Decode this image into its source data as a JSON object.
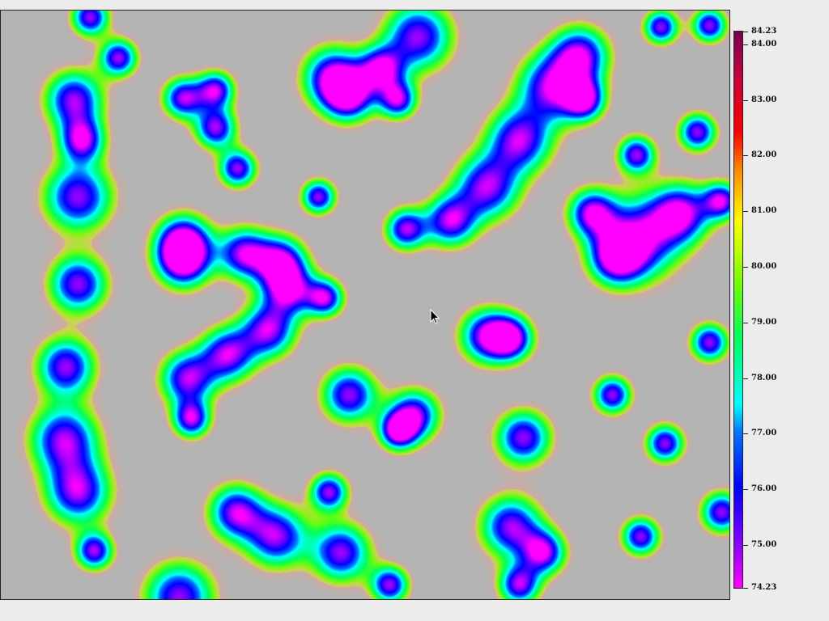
{
  "chart_data": {
    "type": "heatmap",
    "title": "",
    "xlabel": "",
    "ylabel": "",
    "colorbar": {
      "min": 74.23,
      "max": 84.23,
      "ticks": [
        "84.23",
        "84.00",
        "83.00",
        "82.00",
        "81.00",
        "80.00",
        "79.00",
        "78.00",
        "77.00",
        "76.00",
        "75.00",
        "74.23"
      ],
      "tick_values": [
        84.23,
        84.0,
        83.0,
        82.0,
        81.0,
        80.0,
        79.0,
        78.0,
        77.0,
        76.0,
        75.0,
        74.23
      ],
      "colormap": [
        "#ff00ff",
        "#0000ff",
        "#00ffff",
        "#00ff00",
        "#ffff00",
        "#ff0000",
        "#80004a"
      ]
    },
    "background_color": "#b4b4b4",
    "blobs_note": "field of magenta/blue low-value blobs surrounded by cyan-green-yellow halos on grey background"
  },
  "cursor": {
    "name": "mouse-pointer-icon"
  }
}
